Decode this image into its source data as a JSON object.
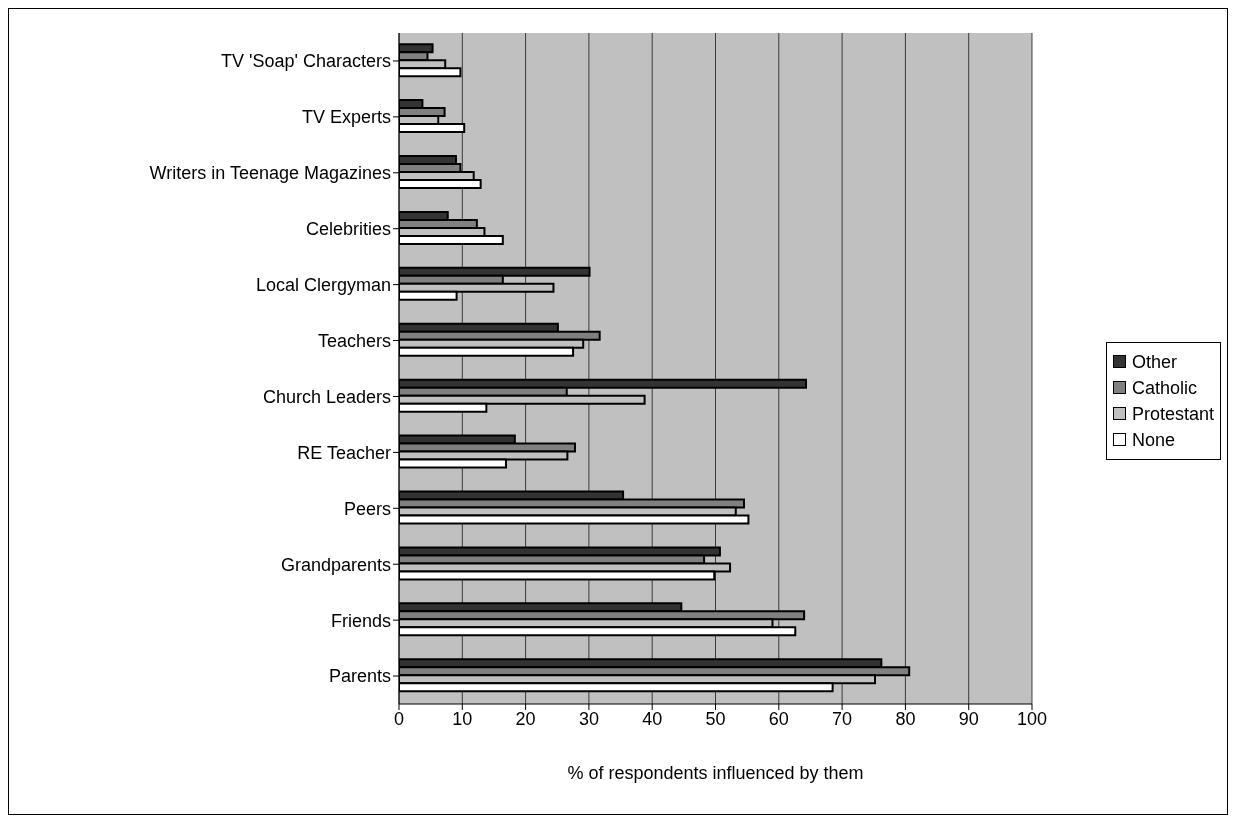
{
  "chart_data": {
    "type": "bar",
    "orientation": "horizontal",
    "xlabel": "% of respondents influenced by them",
    "categories": [
      "TV 'Soap' Characters",
      "TV Experts",
      "Writers in Teenage Magazines",
      "Celebrities",
      "Local Clergyman",
      "Teachers",
      "Church Leaders",
      "RE Teacher",
      "Peers",
      "Grandparents",
      "Friends",
      "Parents"
    ],
    "series": [
      {
        "name": "Other",
        "color": "#333333",
        "values": [
          5.3,
          3.7,
          9.0,
          7.7,
          30.1,
          25.1,
          64.3,
          18.3,
          35.4,
          50.7,
          44.6,
          76.2
        ]
      },
      {
        "name": "Catholic",
        "color": "#808080",
        "values": [
          4.5,
          7.2,
          9.7,
          12.3,
          16.4,
          31.7,
          26.5,
          27.8,
          54.5,
          48.2,
          64.0,
          80.6
        ]
      },
      {
        "name": "Protestant",
        "color": "#c0c0c0",
        "values": [
          7.3,
          6.2,
          11.8,
          13.5,
          24.4,
          29.1,
          38.8,
          26.6,
          53.2,
          52.3,
          59.0,
          75.2
        ]
      },
      {
        "name": "None",
        "color": "#ffffff",
        "values": [
          9.7,
          10.3,
          12.9,
          16.4,
          9.1,
          27.5,
          13.8,
          16.9,
          55.2,
          49.8,
          62.6,
          68.5
        ]
      }
    ],
    "xlim": [
      0,
      100
    ],
    "xticks": [
      0,
      10,
      20,
      30,
      40,
      50,
      60,
      70,
      80,
      90,
      100
    ],
    "grid": "x",
    "legend": "right"
  }
}
